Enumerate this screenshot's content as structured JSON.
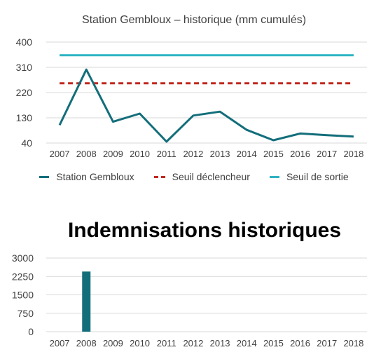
{
  "chart_data": [
    {
      "type": "line",
      "title": "Station Gembloux – historique (mm cumulés)",
      "x": [
        "2007",
        "2008",
        "2009",
        "2010",
        "2011",
        "2012",
        "2013",
        "2014",
        "2015",
        "2016",
        "2017",
        "2018"
      ],
      "yticks": [
        400,
        310,
        220,
        130,
        40
      ],
      "ylim": [
        40,
        400
      ],
      "grid": true,
      "legend_position": "bottom",
      "series": [
        {
          "name": "Station Gembloux",
          "values": [
            104,
            302,
            116,
            145,
            45,
            138,
            152,
            87,
            50,
            74,
            68,
            63
          ],
          "color": "#136e7b",
          "style": "solid"
        },
        {
          "name": "Seuil déclencheur",
          "values": [
            253,
            253,
            253,
            253,
            253,
            253,
            253,
            253,
            253,
            253,
            253,
            253
          ],
          "color": "#c0281f",
          "style": "dashed"
        },
        {
          "name": "Seuil de sortie",
          "values": [
            353,
            353,
            353,
            353,
            353,
            353,
            353,
            353,
            353,
            353,
            353,
            353
          ],
          "color": "#2fb3c3",
          "style": "solid"
        }
      ]
    },
    {
      "type": "bar",
      "title": "Indemnisations historiques",
      "categories": [
        "2007",
        "2008",
        "2009",
        "2010",
        "2011",
        "2012",
        "2013",
        "2014",
        "2015",
        "2016",
        "2017",
        "2018"
      ],
      "values": [
        0,
        2450,
        0,
        0,
        0,
        0,
        0,
        0,
        0,
        0,
        0,
        0
      ],
      "yticks": [
        3000,
        2250,
        1500,
        750,
        0
      ],
      "ylim": [
        0,
        3000
      ],
      "grid": true,
      "color": "#136e7b"
    }
  ]
}
